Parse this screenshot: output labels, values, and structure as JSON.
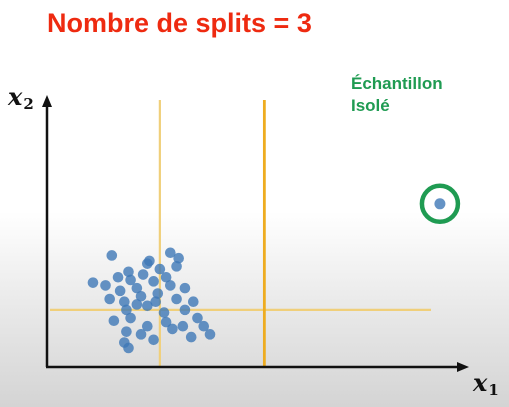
{
  "title": "Nombre de splits = 3",
  "isolated_label": {
    "line1": "Échantillon",
    "line2": "Isolé"
  },
  "axes": {
    "y": {
      "var": "x",
      "sub": "2"
    },
    "x": {
      "var": "x",
      "sub": "1"
    }
  },
  "colors": {
    "title": "#ee2a10",
    "isolated": "#1f9b52",
    "points": "#3f78b6",
    "split_light": "#f0cf7a",
    "split_strong": "#eeac20",
    "axis": "#111111"
  },
  "chart_data": {
    "type": "scatter",
    "xlim": [
      0,
      100
    ],
    "ylim": [
      0,
      100
    ],
    "splits": [
      {
        "orientation": "vertical",
        "value": 27,
        "style": "light"
      },
      {
        "orientation": "horizontal",
        "value": 21,
        "style": "light"
      },
      {
        "orientation": "vertical",
        "value": 52,
        "style": "strong"
      }
    ],
    "points": [
      [
        15.5,
        41
      ],
      [
        11,
        31
      ],
      [
        14,
        30
      ],
      [
        17,
        33
      ],
      [
        19.5,
        35
      ],
      [
        24.5,
        39
      ],
      [
        29.5,
        42
      ],
      [
        31.5,
        40
      ],
      [
        24,
        38
      ],
      [
        20,
        32
      ],
      [
        23,
        34
      ],
      [
        27,
        36
      ],
      [
        31,
        37
      ],
      [
        28.5,
        33
      ],
      [
        17.5,
        28
      ],
      [
        21.5,
        29
      ],
      [
        25.5,
        31.5
      ],
      [
        29.5,
        30
      ],
      [
        33,
        29
      ],
      [
        15,
        25
      ],
      [
        18.5,
        24
      ],
      [
        22.5,
        26
      ],
      [
        26.5,
        27
      ],
      [
        31,
        25
      ],
      [
        35,
        24
      ],
      [
        19,
        21
      ],
      [
        24,
        22.5
      ],
      [
        28,
        20
      ],
      [
        33,
        21
      ],
      [
        16,
        17
      ],
      [
        20,
        18
      ],
      [
        24,
        15
      ],
      [
        28.5,
        16.5
      ],
      [
        32.5,
        15
      ],
      [
        36,
        18
      ],
      [
        37.5,
        15
      ],
      [
        39,
        12
      ],
      [
        19,
        13
      ],
      [
        22.5,
        12
      ],
      [
        30,
        14
      ],
      [
        25.5,
        10
      ],
      [
        34.5,
        11
      ],
      [
        18.5,
        9
      ],
      [
        19.5,
        7
      ],
      [
        21.5,
        23
      ],
      [
        26,
        24
      ]
    ],
    "isolated_point": [
      94,
      60
    ]
  }
}
